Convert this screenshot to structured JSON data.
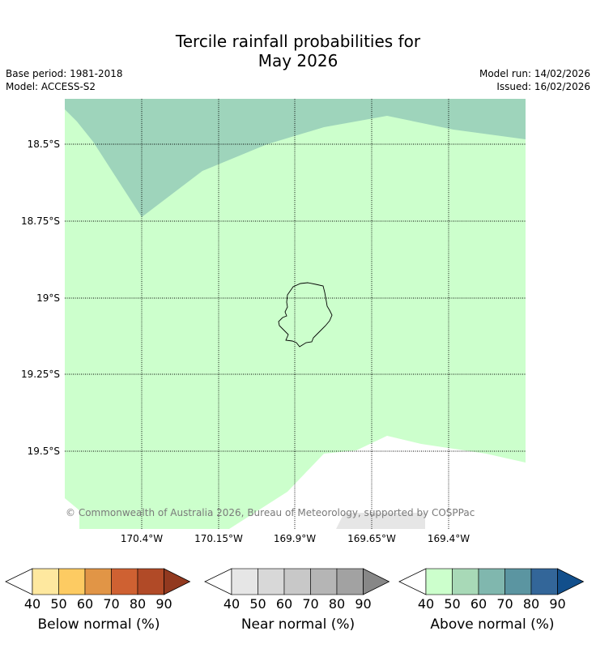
{
  "title_line1": "Tercile rainfall probabilities for",
  "title_line2": "May 2026",
  "base_period": "Base period: 1981-2018",
  "model": "Model: ACCESS-S2",
  "model_run": "Model run: 14/02/2026",
  "issued": "Issued: 16/02/2026",
  "copyright": "© Commonwealth of Australia 2026, Bureau of Meteorology, supported by COSPPac",
  "map": {
    "lat_labels": [
      "18.5°S",
      "18.75°S",
      "19°S",
      "19.25°S",
      "19.5°S"
    ],
    "lon_labels": [
      "170.4°W",
      "170.15°W",
      "169.9°W",
      "169.65°W",
      "169.4°W"
    ],
    "colors": {
      "above_50": "#ccffcc",
      "above_60": "#9ed4bb",
      "near_normal_40": "#e6e6e6",
      "background": "#ffffff"
    }
  },
  "legends": [
    {
      "label": "Below normal (%)",
      "ticks": [
        "40",
        "50",
        "60",
        "70",
        "80",
        "90"
      ],
      "colors": [
        "#fee89f",
        "#fdcb62",
        "#e19546",
        "#cf6132",
        "#b14a27",
        "#92391f"
      ]
    },
    {
      "label": "Near normal (%)",
      "ticks": [
        "40",
        "50",
        "60",
        "70",
        "80",
        "90"
      ],
      "colors": [
        "#e6e6e6",
        "#d8d8d8",
        "#c8c8c8",
        "#b5b5b5",
        "#a2a2a2",
        "#878787"
      ]
    },
    {
      "label": "Above normal (%)",
      "ticks": [
        "40",
        "50",
        "60",
        "70",
        "80",
        "90"
      ],
      "colors": [
        "#ccffcc",
        "#a8d9b7",
        "#80b7ae",
        "#5b95a1",
        "#336699",
        "#124f8c"
      ]
    }
  ]
}
